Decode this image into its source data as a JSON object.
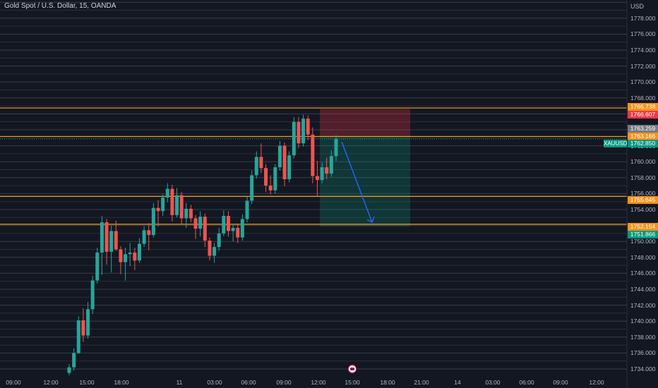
{
  "header": {
    "symbol_title": "Gold Spot / U.S. Dollar, 15, OANDA",
    "currency": "USD"
  },
  "y_axis_ticks": [
    "1778.000",
    "1776.000",
    "1774.000",
    "1772.000",
    "1770.000",
    "1768.000",
    "1766.000",
    "1762.000",
    "1760.000",
    "1758.000",
    "1756.000",
    "1754.000",
    "1750.000",
    "1748.000",
    "1746.000",
    "1744.000",
    "1742.000",
    "1740.000",
    "1738.000",
    "1736.000",
    "1734.000"
  ],
  "x_axis_ticks": [
    "09:00",
    "12:00",
    "15:00",
    "18:00",
    "11",
    "03:00",
    "06:00",
    "09:00",
    "12:00",
    "15:00",
    "18:00",
    "21:00",
    "14",
    "03:00",
    "06:00",
    "09:00",
    "12:00"
  ],
  "price_badges": {
    "resistance_top": "1766.738",
    "stop_loss": "1766.607",
    "gray_level": "1763.259",
    "entry": "1763.166",
    "current_price": "1762.850",
    "support_mid": "1755.645",
    "support_low": "1752.154",
    "take_profit": "1751.866"
  },
  "symbol_badge": "XAUUSD",
  "colors": {
    "background": "#131722",
    "up_candle": "#26a69a",
    "down_candle": "#ef5350",
    "level_line": "#f7a21b",
    "stop_zone": "#f23645",
    "target_zone": "#089981",
    "arrow": "#2962ff",
    "badge_orange": "#f7931a",
    "badge_red": "#f23645",
    "badge_gray": "#787b86",
    "badge_green": "#089981"
  },
  "chart_data": {
    "type": "candlestick",
    "title": "Gold Spot / U.S. Dollar, 15, OANDA",
    "ylim": [
      1733,
      1780
    ],
    "grid": true,
    "horizontal_levels": [
      1766.738,
      1763.166,
      1755.645,
      1752.154
    ],
    "position": {
      "type": "short",
      "entry": 1763.166,
      "stop_loss": 1766.607,
      "take_profit": 1751.866
    },
    "current_price": 1762.85,
    "candles": [
      [
        1733.5,
        1734.6,
        1733.2,
        1734.2
      ],
      [
        1734.2,
        1736.6,
        1733.8,
        1736.0
      ],
      [
        1736.0,
        1740.6,
        1735.9,
        1740.1
      ],
      [
        1740.1,
        1741.6,
        1737.4,
        1738.2
      ],
      [
        1738.2,
        1742.4,
        1737.8,
        1741.5
      ],
      [
        1741.5,
        1745.7,
        1740.9,
        1745.1
      ],
      [
        1745.1,
        1749.2,
        1744.7,
        1748.6
      ],
      [
        1748.6,
        1753.2,
        1745.8,
        1752.4
      ],
      [
        1752.4,
        1752.8,
        1747.1,
        1748.7
      ],
      [
        1748.7,
        1752.0,
        1746.1,
        1751.3
      ],
      [
        1751.3,
        1752.6,
        1748.8,
        1749.0
      ],
      [
        1749.0,
        1749.4,
        1745.9,
        1747.4
      ],
      [
        1747.4,
        1749.2,
        1745.1,
        1748.4
      ],
      [
        1748.4,
        1749.8,
        1746.9,
        1748.6
      ],
      [
        1748.6,
        1749.2,
        1746.4,
        1747.6
      ],
      [
        1747.6,
        1750.4,
        1747.3,
        1749.7
      ],
      [
        1749.7,
        1751.9,
        1749.3,
        1751.4
      ],
      [
        1751.4,
        1752.3,
        1748.9,
        1750.8
      ],
      [
        1750.8,
        1754.8,
        1750.5,
        1754.2
      ],
      [
        1754.2,
        1755.2,
        1751.9,
        1753.8
      ],
      [
        1753.8,
        1755.9,
        1753.2,
        1755.5
      ],
      [
        1755.5,
        1757.3,
        1754.9,
        1756.6
      ],
      [
        1756.6,
        1757.1,
        1752.5,
        1753.3
      ],
      [
        1753.3,
        1756.7,
        1753.0,
        1755.8
      ],
      [
        1755.8,
        1756.2,
        1752.2,
        1752.9
      ],
      [
        1752.9,
        1754.8,
        1751.7,
        1754.1
      ],
      [
        1754.1,
        1754.6,
        1752.4,
        1752.9
      ],
      [
        1752.9,
        1753.3,
        1750.3,
        1751.6
      ],
      [
        1751.6,
        1753.8,
        1750.6,
        1753.1
      ],
      [
        1753.1,
        1753.5,
        1749.3,
        1750.1
      ],
      [
        1750.1,
        1750.5,
        1747.6,
        1748.2
      ],
      [
        1748.2,
        1749.8,
        1747.3,
        1749.3
      ],
      [
        1749.3,
        1751.7,
        1748.8,
        1751.0
      ],
      [
        1751.0,
        1753.9,
        1750.7,
        1753.2
      ],
      [
        1753.2,
        1753.8,
        1750.6,
        1751.3
      ],
      [
        1751.3,
        1752.2,
        1750.0,
        1751.7
      ],
      [
        1751.7,
        1752.1,
        1749.8,
        1750.5
      ],
      [
        1750.5,
        1753.4,
        1750.1,
        1752.8
      ],
      [
        1752.8,
        1755.6,
        1752.4,
        1755.1
      ],
      [
        1755.1,
        1758.9,
        1754.7,
        1758.3
      ],
      [
        1758.3,
        1761.3,
        1757.9,
        1760.6
      ],
      [
        1760.6,
        1762.3,
        1758.6,
        1759.2
      ],
      [
        1759.2,
        1759.7,
        1756.2,
        1757.0
      ],
      [
        1757.0,
        1758.3,
        1755.9,
        1756.4
      ],
      [
        1756.4,
        1759.7,
        1756.0,
        1759.3
      ],
      [
        1759.3,
        1762.6,
        1758.9,
        1762.0
      ],
      [
        1762.0,
        1762.4,
        1756.9,
        1757.8
      ],
      [
        1757.8,
        1761.3,
        1757.4,
        1760.8
      ],
      [
        1760.8,
        1765.6,
        1760.4,
        1765.0
      ],
      [
        1765.0,
        1765.6,
        1761.7,
        1762.3
      ],
      [
        1762.3,
        1765.9,
        1761.9,
        1765.4
      ],
      [
        1765.4,
        1765.8,
        1762.7,
        1763.4
      ],
      [
        1763.4,
        1764.3,
        1757.3,
        1758.2
      ],
      [
        1758.2,
        1760.1,
        1755.6,
        1757.7
      ],
      [
        1757.7,
        1759.9,
        1757.3,
        1759.3
      ],
      [
        1759.3,
        1760.5,
        1757.8,
        1758.5
      ],
      [
        1758.5,
        1761.4,
        1758.1,
        1760.7
      ],
      [
        1760.7,
        1763.3,
        1760.1,
        1762.85
      ]
    ]
  }
}
